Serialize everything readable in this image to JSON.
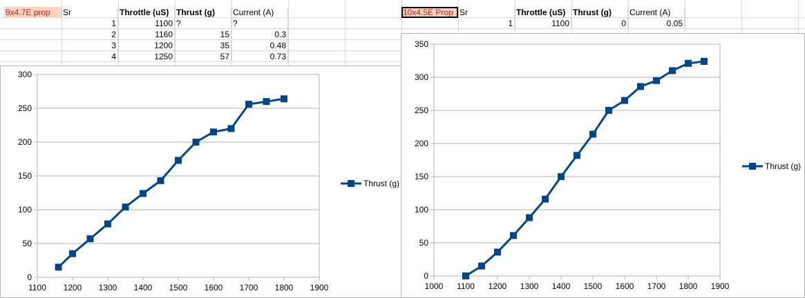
{
  "left_table": {
    "title": "9x4.7E prop",
    "col_sr": "Sr",
    "col_throttle": "Throttle (uS)",
    "col_thrust": "Thrust (g)",
    "col_current": "Current (A)",
    "rows": [
      {
        "sr": "1",
        "throttle": "1100",
        "thrust": "?",
        "current": "?"
      },
      {
        "sr": "2",
        "throttle": "1160",
        "thrust": "15",
        "current": "0.3"
      },
      {
        "sr": "3",
        "throttle": "1200",
        "thrust": "35",
        "current": "0.48"
      },
      {
        "sr": "4",
        "throttle": "1250",
        "thrust": "57",
        "current": "0.73"
      }
    ]
  },
  "right_table": {
    "title": "10x4.5E Prop",
    "col_sr": "Sr",
    "col_throttle": "Throttle (uS)",
    "col_thrust": "Thrust (g)",
    "col_current": "Current (A)",
    "rows": [
      {
        "sr": "1",
        "throttle": "1100",
        "thrust": "0",
        "current": "0.05"
      }
    ]
  },
  "chart_data": [
    {
      "type": "line",
      "series": [
        {
          "name": "Thrust (g)",
          "color": "#004586",
          "x": [
            1160,
            1200,
            1250,
            1300,
            1350,
            1400,
            1450,
            1500,
            1550,
            1600,
            1650,
            1700,
            1750,
            1800
          ],
          "values": [
            15,
            35,
            57,
            79,
            104,
            124,
            143,
            173,
            200,
            215,
            220,
            256,
            260,
            264
          ]
        }
      ],
      "xlim": [
        1100,
        1900
      ],
      "xticks": [
        "1100",
        "1200",
        "1300",
        "1400",
        "1500",
        "1600",
        "1700",
        "1800",
        "1900"
      ],
      "ylim": [
        0,
        300
      ],
      "yticks": [
        "0",
        "50",
        "100",
        "150",
        "200",
        "250",
        "300"
      ],
      "grid": "horizontal",
      "legend": "right",
      "title": "",
      "xlabel": "",
      "ylabel": ""
    },
    {
      "type": "line",
      "series": [
        {
          "name": "Thrust (g)",
          "color": "#004586",
          "x": [
            1100,
            1150,
            1200,
            1250,
            1300,
            1350,
            1400,
            1450,
            1500,
            1550,
            1600,
            1650,
            1700,
            1750,
            1800,
            1850
          ],
          "values": [
            0,
            15,
            36,
            61,
            88,
            116,
            150,
            182,
            214,
            250,
            265,
            286,
            295,
            310,
            321,
            324
          ]
        }
      ],
      "xlim": [
        1000,
        1900
      ],
      "xticks": [
        "1000",
        "1100",
        "1200",
        "1300",
        "1400",
        "1500",
        "1600",
        "1700",
        "1800",
        "1900"
      ],
      "ylim": [
        0,
        350
      ],
      "yticks": [
        "0",
        "50",
        "100",
        "150",
        "200",
        "250",
        "300",
        "350"
      ],
      "grid": "horizontal",
      "legend": "right",
      "title": "",
      "xlabel": "",
      "ylabel": ""
    }
  ]
}
